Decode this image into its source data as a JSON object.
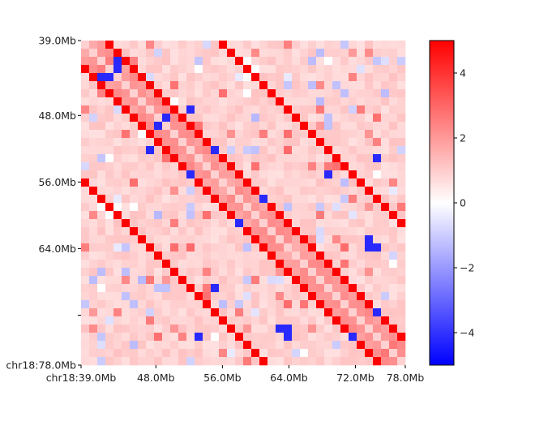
{
  "chart_data": {
    "type": "heatmap",
    "title": "",
    "xlabel": "",
    "ylabel": "",
    "grid": false,
    "x_ticks": [
      "chr18:39.0Mb",
      "48.0Mb",
      "56.0Mb",
      "64.0Mb",
      "72.0Mb",
      "78.0Mb"
    ],
    "y_ticks": [
      "39.0Mb",
      "48.0Mb",
      "56.0Mb",
      "64.0Mb",
      "",
      "chr18:78.0Mb"
    ],
    "x_tick_values_mb": [
      39,
      48,
      56,
      64,
      72,
      78
    ],
    "y_tick_values_mb": [
      39,
      48,
      56,
      64,
      72,
      78
    ],
    "xlim_mb": [
      39,
      78
    ],
    "ylim_mb": [
      39,
      78
    ],
    "bins": 40,
    "colormap": {
      "name": "bwr",
      "vmin": -5,
      "vmax": 5,
      "low_color": "#0000ff",
      "mid_color": "#ffffff",
      "high_color": "#ff0000"
    },
    "colorbar": {
      "ticks": [
        -4,
        -2,
        0,
        2,
        4
      ],
      "tick_labels": [
        "−4",
        "−2",
        "0",
        "2",
        "4"
      ],
      "placement": "right"
    },
    "diagonal_lines": [
      {
        "from_bin": [
          0,
          3
        ],
        "to_bin": [
          36,
          39
        ]
      },
      {
        "from_bin": [
          0,
          17
        ],
        "to_bin": [
          22,
          39
        ]
      },
      {
        "from_bin": [
          3,
          0
        ],
        "to_bin": [
          39,
          36
        ]
      },
      {
        "from_bin": [
          17,
          0
        ],
        "to_bin": [
          39,
          22
        ]
      }
    ]
  }
}
